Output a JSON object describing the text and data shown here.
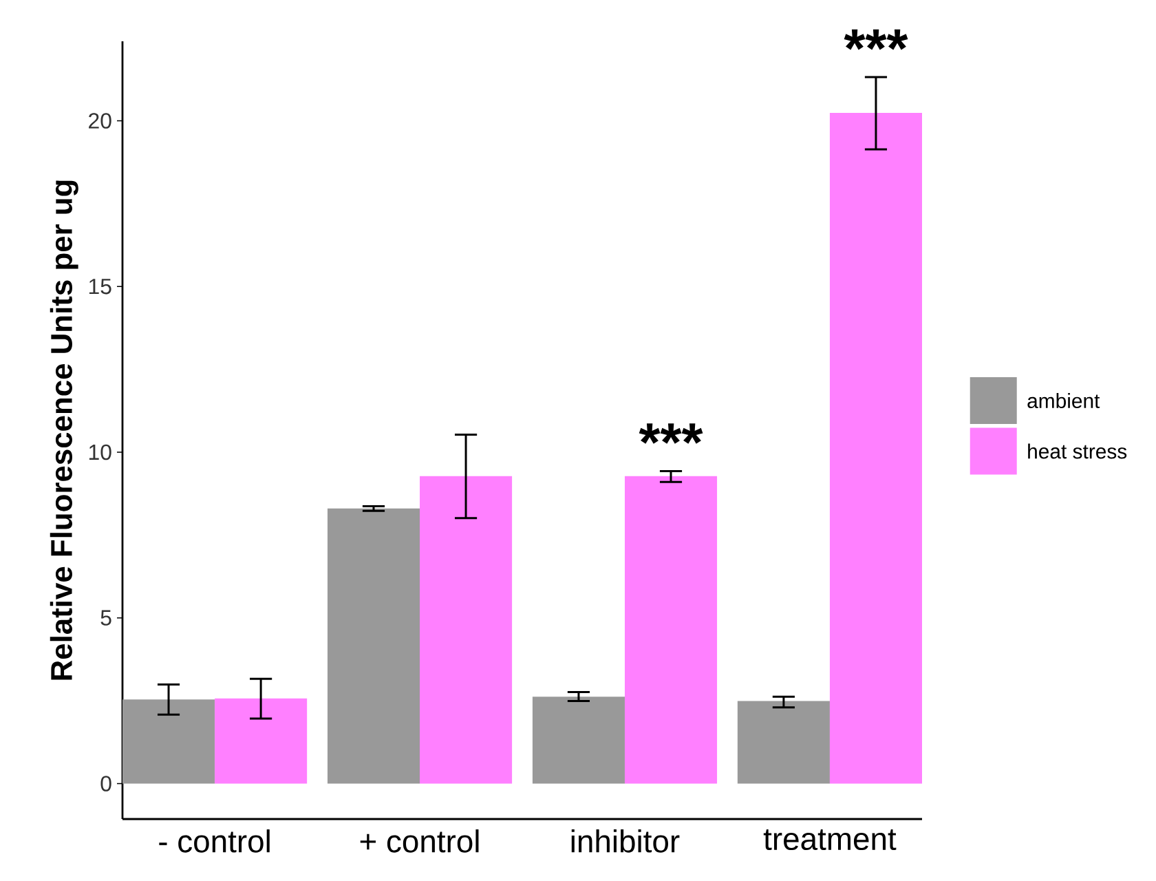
{
  "chart_data": {
    "type": "bar",
    "ylabel": "Relative Fluorescence Units per ug",
    "categories": [
      "- control",
      "+ control",
      "inhibitor",
      "treatment"
    ],
    "series": [
      {
        "name": "ambient",
        "color": "#999999",
        "values": [
          2.54,
          8.3,
          2.62,
          2.49
        ],
        "errors": [
          [
            2.08,
            2.99
          ],
          [
            8.23,
            8.37
          ],
          [
            2.49,
            2.76
          ],
          [
            2.3,
            2.62
          ]
        ]
      },
      {
        "name": "heat stress",
        "color": "#ff80ff",
        "values": [
          2.57,
          9.28,
          9.28,
          20.24
        ],
        "errors": [
          [
            1.96,
            3.16
          ],
          [
            8.01,
            10.53
          ],
          [
            9.1,
            9.43
          ],
          [
            19.14,
            21.32
          ]
        ]
      }
    ],
    "ylim": [
      -1.07,
      22.4
    ],
    "yticks": [
      0,
      5,
      10,
      15,
      20
    ],
    "legend": "right",
    "annotations": [
      {
        "text": "***",
        "x": "inhibitor",
        "y": 9.28
      },
      {
        "text": "***",
        "x": "treatment",
        "y": 20.24
      }
    ]
  }
}
